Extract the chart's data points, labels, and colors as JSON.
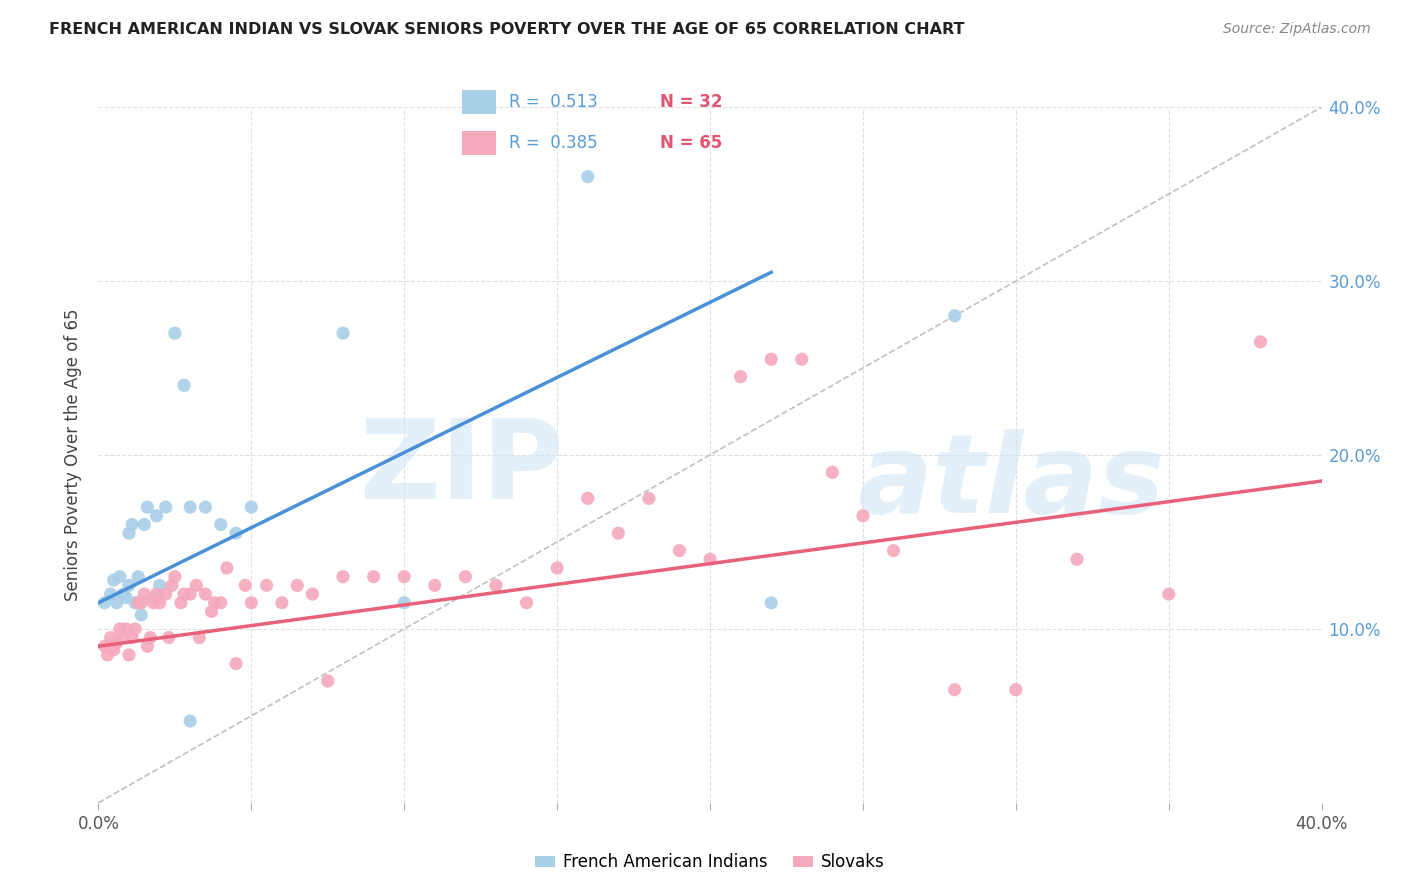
{
  "title": "FRENCH AMERICAN INDIAN VS SLOVAK SENIORS POVERTY OVER THE AGE OF 65 CORRELATION CHART",
  "source": "Source: ZipAtlas.com",
  "ylabel": "Seniors Poverty Over the Age of 65",
  "xlim": [
    0.0,
    0.4
  ],
  "ylim": [
    0.0,
    0.4
  ],
  "right_ytick_labels": [
    "10.0%",
    "20.0%",
    "30.0%",
    "40.0%"
  ],
  "right_ytick_values": [
    0.1,
    0.2,
    0.3,
    0.4
  ],
  "legend_R1": "R =  0.513",
  "legend_N1": "N = 32",
  "legend_R2": "R =  0.385",
  "legend_N2": "N = 65",
  "legend_label1": "French American Indians",
  "legend_label2": "Slovaks",
  "color_blue": "#a8cfe8",
  "color_pink": "#f4a8bc",
  "color_blue_line": "#4a90d9",
  "color_pink_line": "#e8607a",
  "color_dashed": "#c0c0c0",
  "color_legend_blue": "#5b9bd5",
  "color_legend_red": "#e05570",
  "background_color": "#ffffff",
  "grid_color": "#e0e0e0",
  "blue_line_x0": 0.0,
  "blue_line_y0": 0.115,
  "blue_line_x1": 0.22,
  "blue_line_y1": 0.305,
  "pink_line_x0": 0.0,
  "pink_line_y0": 0.09,
  "pink_line_x1": 0.4,
  "pink_line_y1": 0.185,
  "french_x": [
    0.002,
    0.004,
    0.005,
    0.006,
    0.007,
    0.008,
    0.009,
    0.01,
    0.01,
    0.011,
    0.012,
    0.013,
    0.014,
    0.015,
    0.016,
    0.018,
    0.019,
    0.02,
    0.022,
    0.025,
    0.028,
    0.03,
    0.035,
    0.04,
    0.045,
    0.05,
    0.08,
    0.1,
    0.16,
    0.22,
    0.28,
    0.03
  ],
  "french_y": [
    0.115,
    0.12,
    0.128,
    0.115,
    0.13,
    0.12,
    0.118,
    0.125,
    0.155,
    0.16,
    0.115,
    0.13,
    0.108,
    0.16,
    0.17,
    0.118,
    0.165,
    0.125,
    0.17,
    0.27,
    0.24,
    0.047,
    0.17,
    0.16,
    0.155,
    0.17,
    0.27,
    0.115,
    0.36,
    0.115,
    0.28,
    0.17
  ],
  "slovak_x": [
    0.002,
    0.003,
    0.004,
    0.005,
    0.006,
    0.007,
    0.008,
    0.009,
    0.01,
    0.011,
    0.012,
    0.013,
    0.014,
    0.015,
    0.016,
    0.017,
    0.018,
    0.019,
    0.02,
    0.022,
    0.023,
    0.024,
    0.025,
    0.027,
    0.028,
    0.03,
    0.032,
    0.033,
    0.035,
    0.037,
    0.038,
    0.04,
    0.042,
    0.045,
    0.048,
    0.05,
    0.055,
    0.06,
    0.065,
    0.07,
    0.075,
    0.08,
    0.09,
    0.1,
    0.11,
    0.12,
    0.13,
    0.14,
    0.15,
    0.16,
    0.17,
    0.18,
    0.19,
    0.2,
    0.21,
    0.22,
    0.23,
    0.24,
    0.25,
    0.26,
    0.28,
    0.3,
    0.32,
    0.35,
    0.38
  ],
  "slovak_y": [
    0.09,
    0.085,
    0.095,
    0.088,
    0.092,
    0.1,
    0.095,
    0.1,
    0.085,
    0.095,
    0.1,
    0.115,
    0.115,
    0.12,
    0.09,
    0.095,
    0.115,
    0.12,
    0.115,
    0.12,
    0.095,
    0.125,
    0.13,
    0.115,
    0.12,
    0.12,
    0.125,
    0.095,
    0.12,
    0.11,
    0.115,
    0.115,
    0.135,
    0.08,
    0.125,
    0.115,
    0.125,
    0.115,
    0.125,
    0.12,
    0.07,
    0.13,
    0.13,
    0.13,
    0.125,
    0.13,
    0.125,
    0.115,
    0.135,
    0.175,
    0.155,
    0.175,
    0.145,
    0.14,
    0.245,
    0.255,
    0.255,
    0.19,
    0.165,
    0.145,
    0.065,
    0.065,
    0.14,
    0.12,
    0.265
  ],
  "watermark_zip_color": "#cce4f5",
  "watermark_atlas_color": "#cce4f5",
  "watermark_alpha": 0.55
}
